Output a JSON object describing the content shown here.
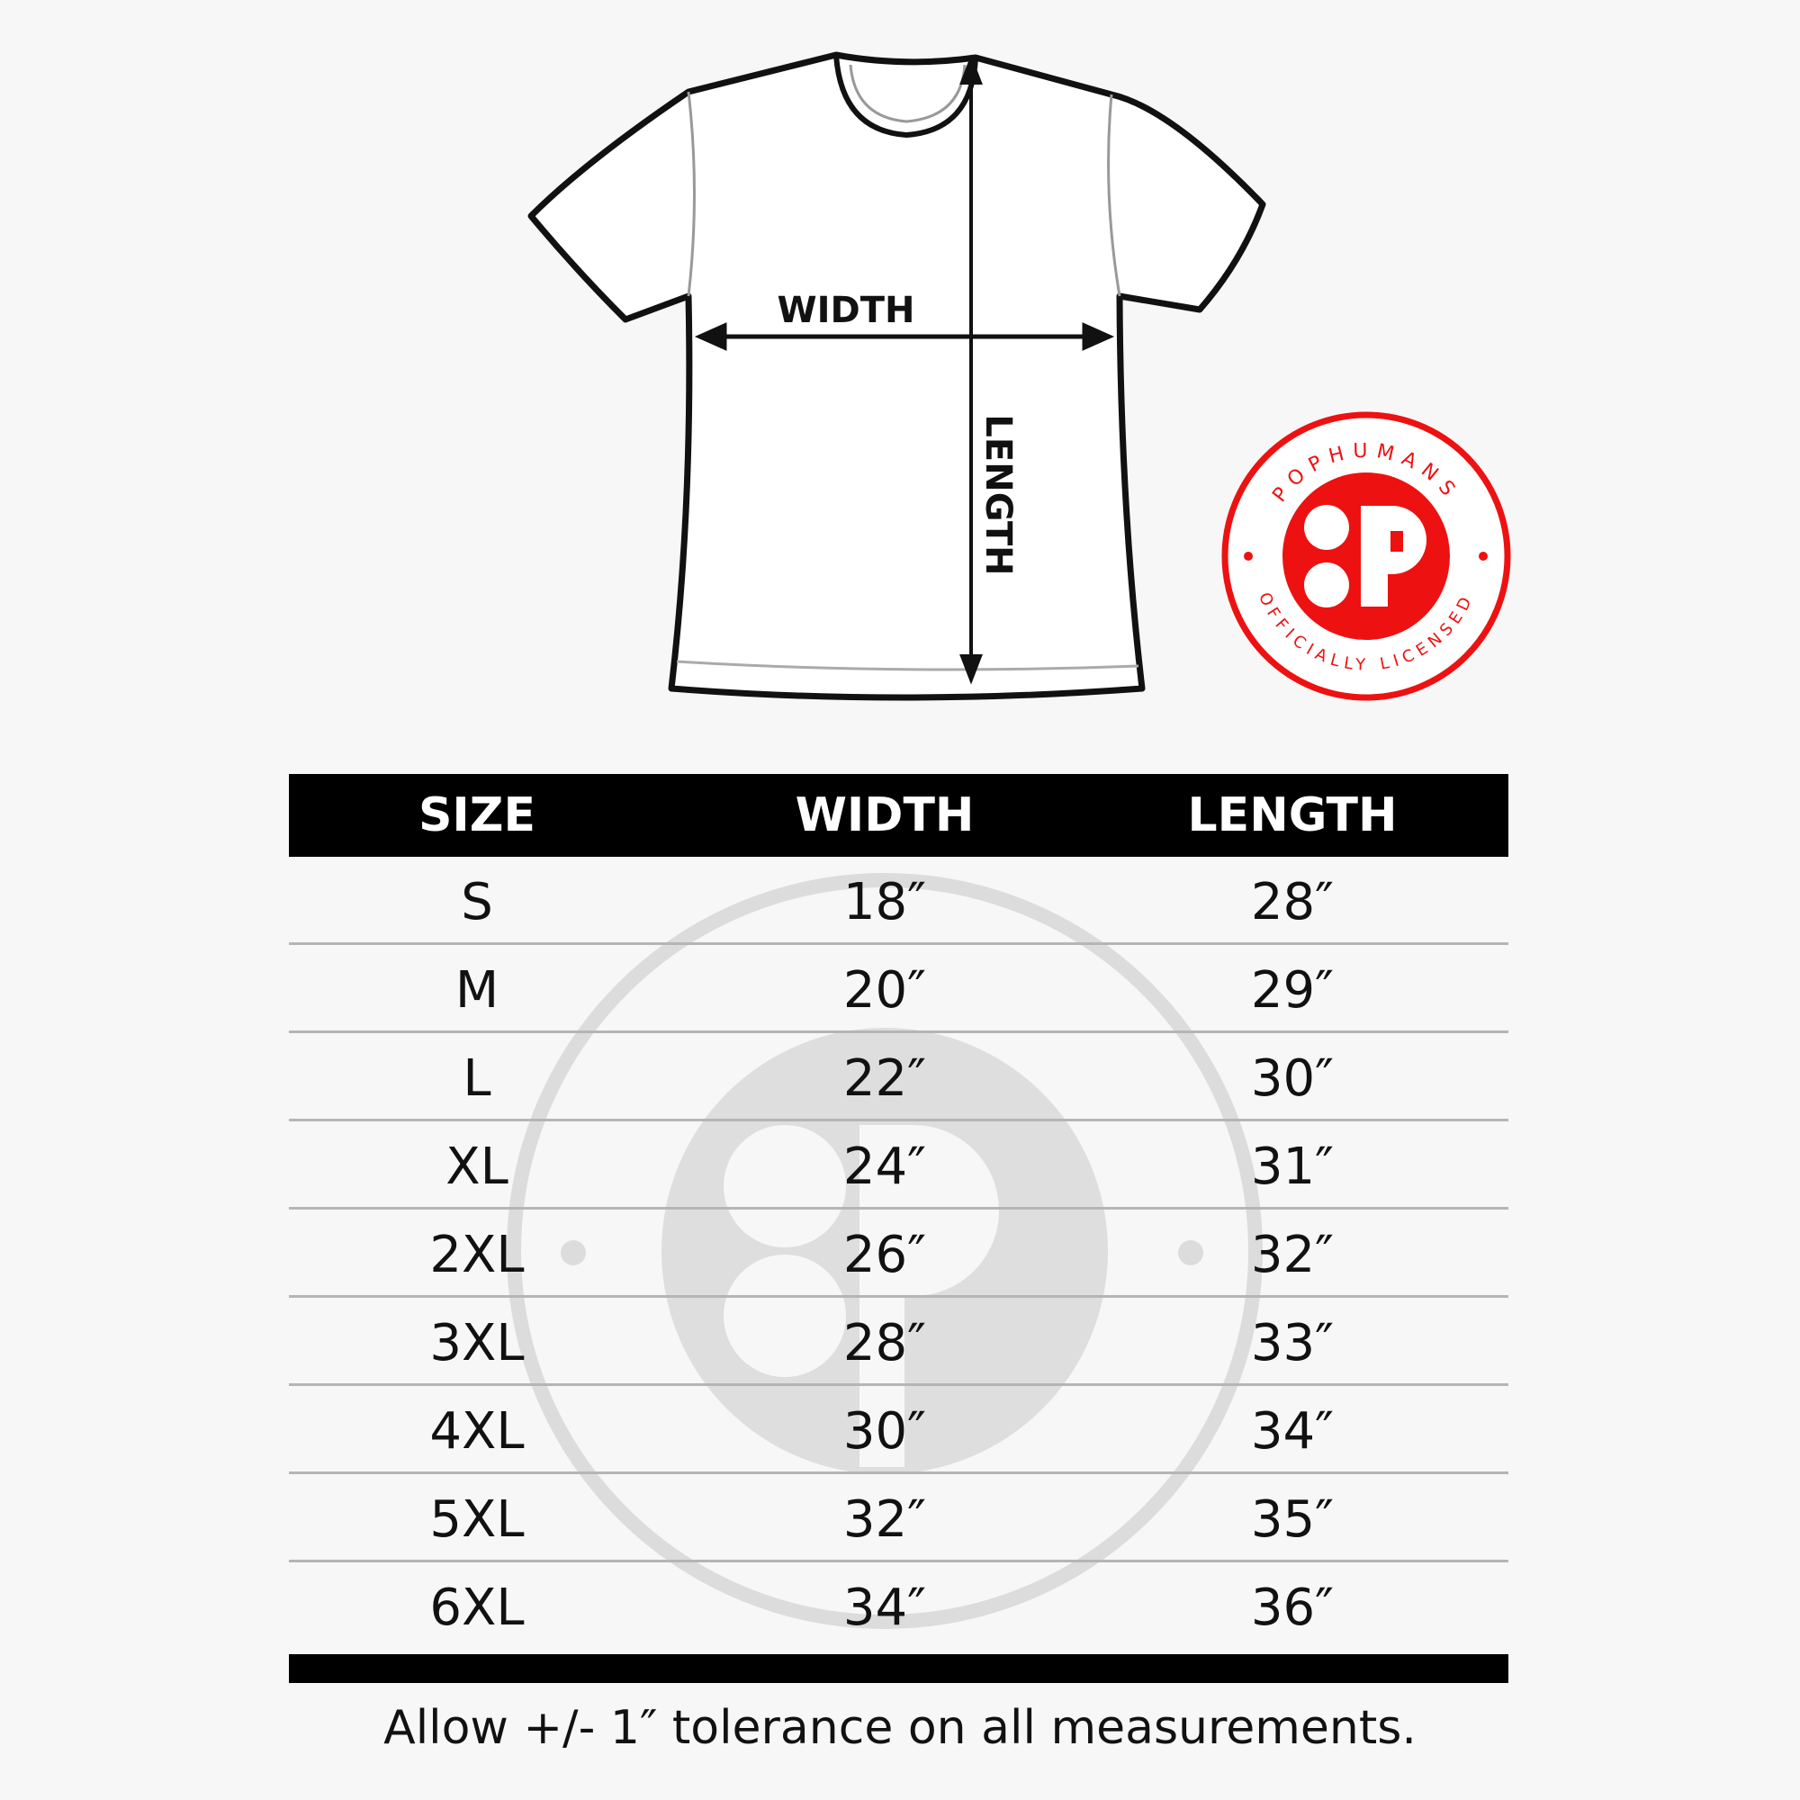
{
  "diagram": {
    "width_label": "WIDTH",
    "length_label": "LENGTH"
  },
  "badge": {
    "top_text": "POPHUMANS",
    "bottom_text": "OFFICIALLY LICENSED",
    "color": "#ee1111"
  },
  "table": {
    "headers": [
      "SIZE",
      "WIDTH",
      "LENGTH"
    ],
    "rows": [
      [
        "S",
        "18″",
        "28″"
      ],
      [
        "M",
        "20″",
        "29″"
      ],
      [
        "L",
        "22″",
        "30″"
      ],
      [
        "XL",
        "24″",
        "31″"
      ],
      [
        "2XL",
        "26″",
        "32″"
      ],
      [
        "3XL",
        "28″",
        "33″"
      ],
      [
        "4XL",
        "30″",
        "34″"
      ],
      [
        "5XL",
        "32″",
        "35″"
      ],
      [
        "6XL",
        "34″",
        "36″"
      ]
    ]
  },
  "footer": "Allow +/- 1″ tolerance on all measurements."
}
